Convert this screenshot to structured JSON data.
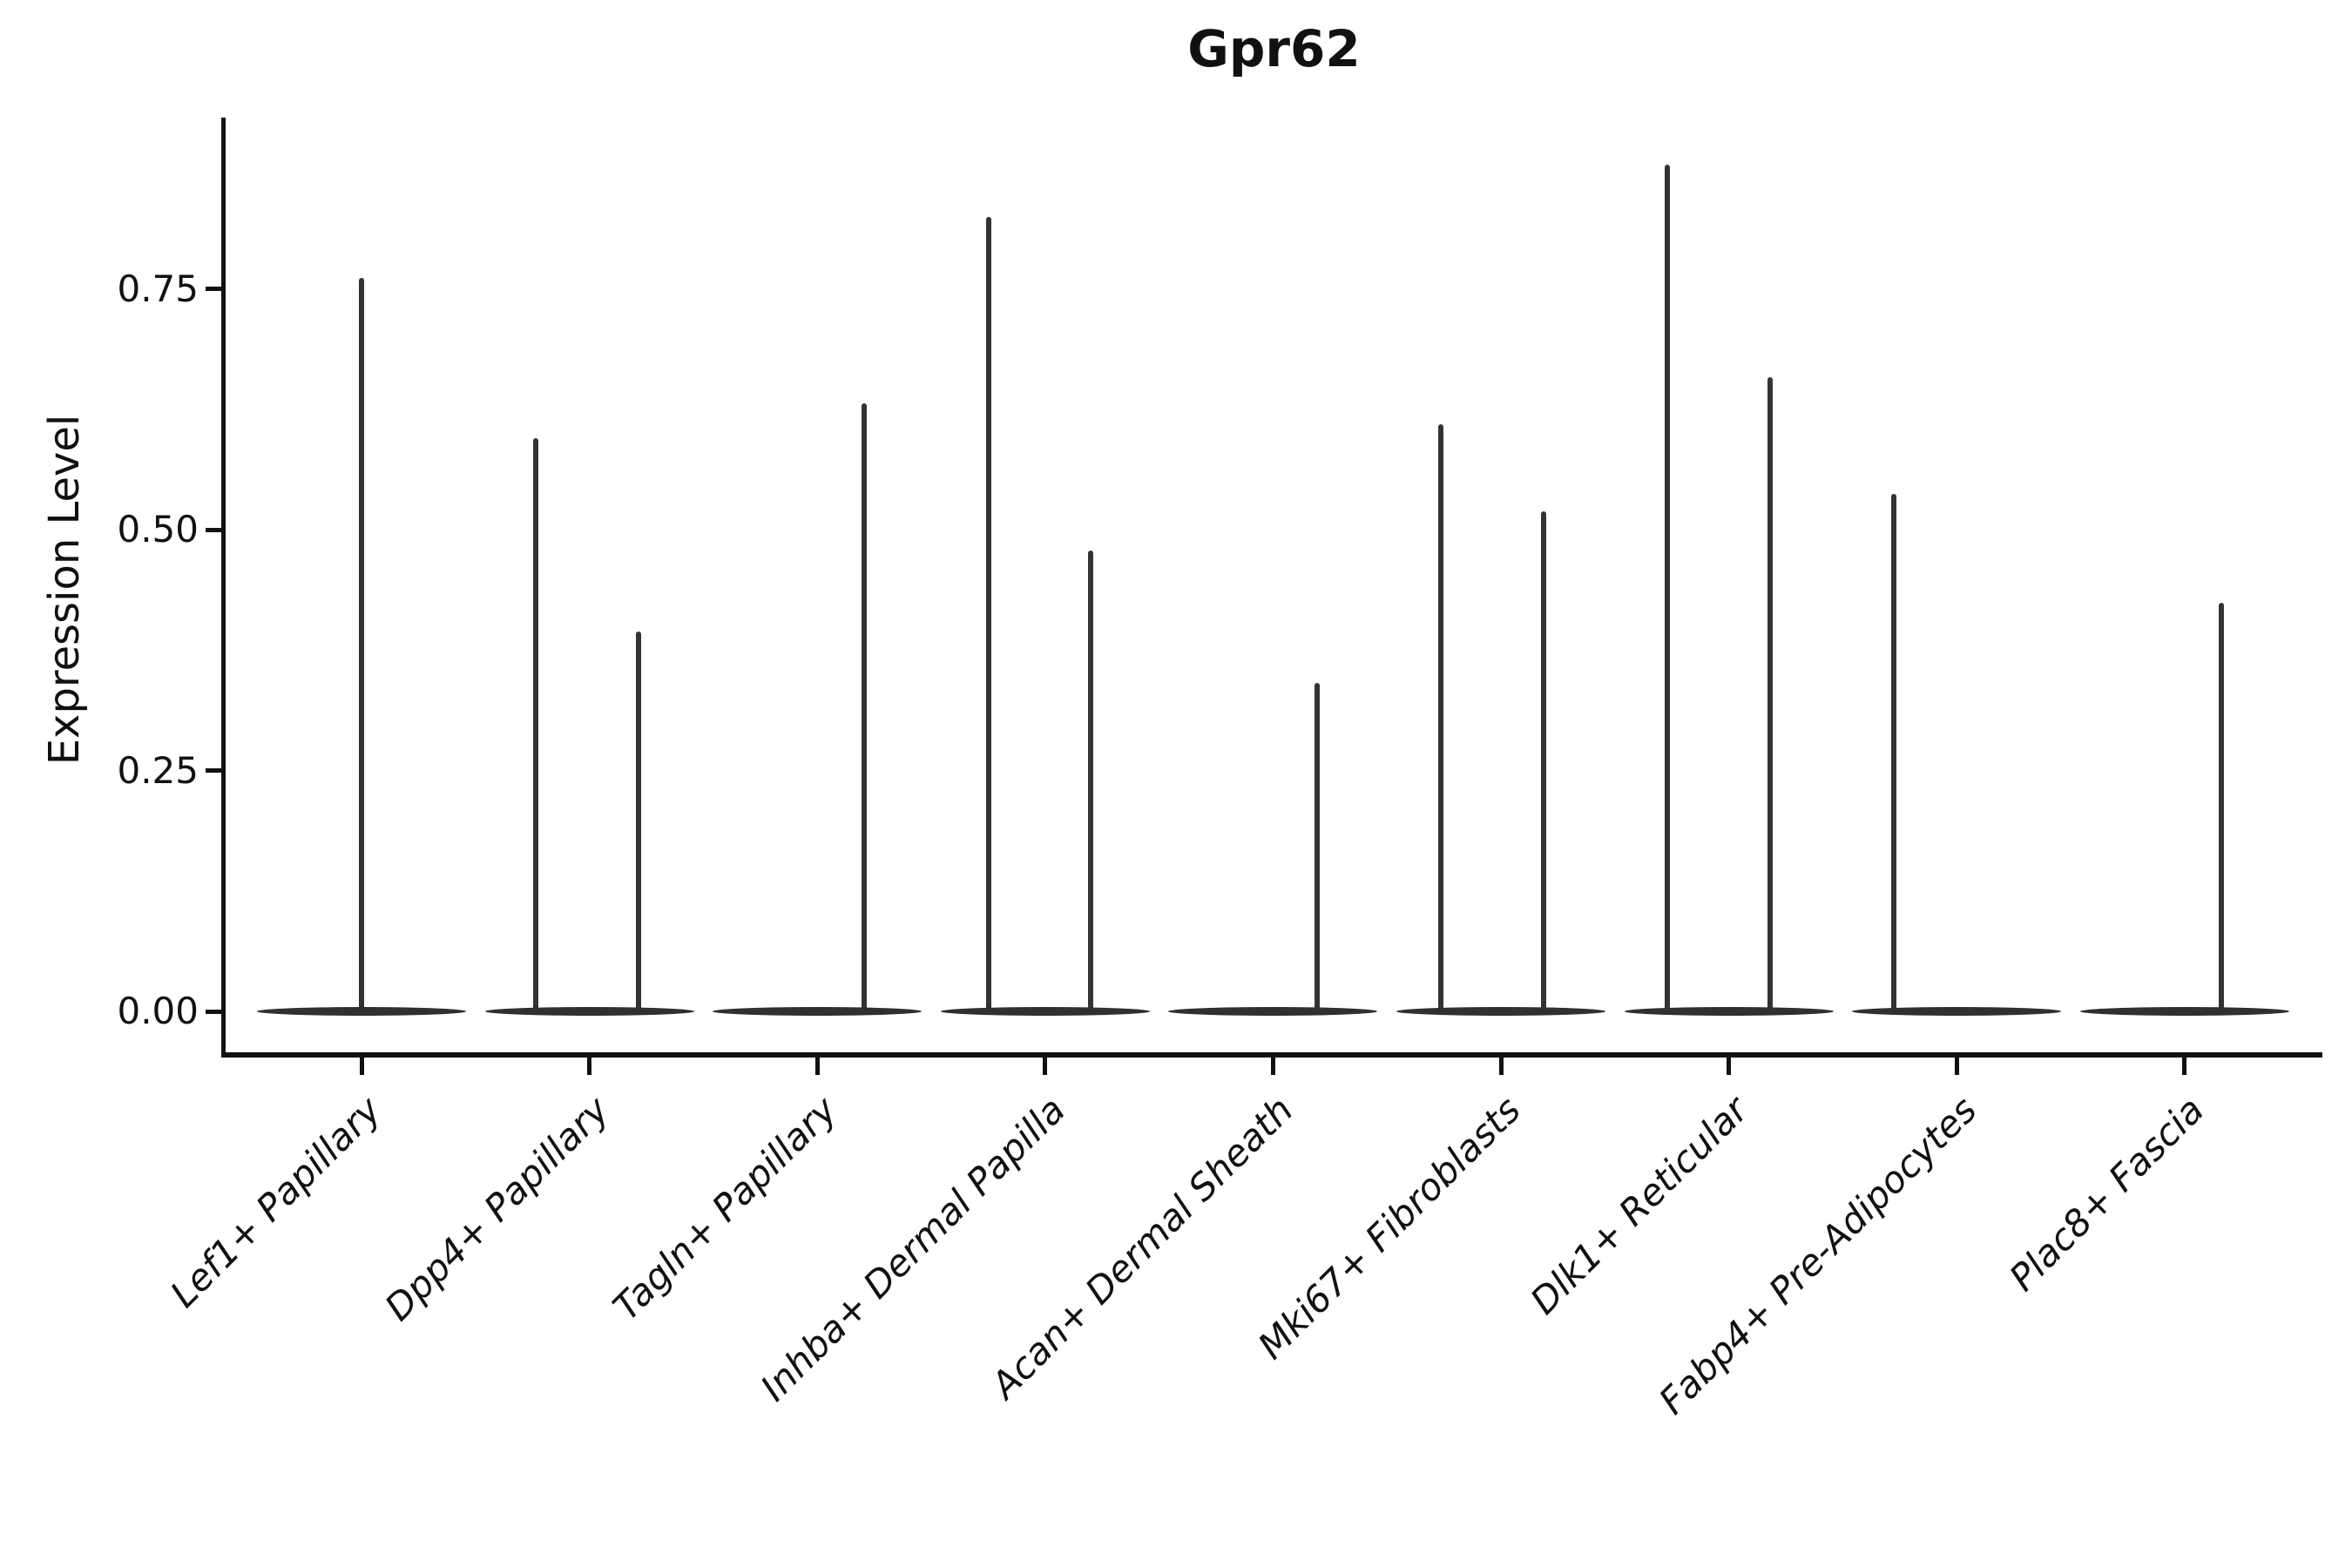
{
  "title": "Gpr62",
  "axes": {
    "ylabel": "Expression Level",
    "yticks": [
      {
        "label": "0.00",
        "value": 0.0
      },
      {
        "label": "0.25",
        "value": 0.25
      },
      {
        "label": "0.50",
        "value": 0.5
      },
      {
        "label": "0.75",
        "value": 0.75
      }
    ]
  },
  "chart_data": {
    "type": "violin",
    "title": "Gpr62",
    "xlabel": "",
    "ylabel": "Expression Level",
    "ylim": [
      -0.045,
      0.93
    ],
    "ytick_values": [
      0.0,
      0.25,
      0.5,
      0.75
    ],
    "grid": false,
    "legend": false,
    "xtick_rotation": 45,
    "categories": [
      "Lef1+ Papillary",
      "Dpp4+ Papillary",
      "Tagln+ Papillary",
      "Inhba+ Dermal Papilla",
      "Acan+ Dermal Sheath",
      "Mki67+ Fibroblasts",
      "Dlk1+ Reticular",
      "Fabp4+ Pre-Adipocytes",
      "Plac8+ Fascia"
    ],
    "violins": [
      {
        "category": "Lef1+ Papillary",
        "base_value": 0,
        "peaks": [
          {
            "offset_frac": 0.0,
            "max": 0.761
          }
        ]
      },
      {
        "category": "Dpp4+ Papillary",
        "base_value": 0,
        "peaks": [
          {
            "offset_frac": -0.235,
            "max": 0.595
          },
          {
            "offset_frac": 0.216,
            "max": 0.394
          }
        ]
      },
      {
        "category": "Tagln+ Papillary",
        "base_value": 0,
        "peaks": [
          {
            "offset_frac": 0.206,
            "max": 0.631
          }
        ]
      },
      {
        "category": "Inhba+ Dermal Papilla",
        "base_value": 0,
        "peaks": [
          {
            "offset_frac": -0.248,
            "max": 0.825
          },
          {
            "offset_frac": 0.2,
            "max": 0.478
          }
        ]
      },
      {
        "category": "Acan+ Dermal Sheath",
        "base_value": 0,
        "peaks": [
          {
            "offset_frac": 0.193,
            "max": 0.341
          }
        ]
      },
      {
        "category": "Mki67+ Fibroblasts",
        "base_value": 0,
        "peaks": [
          {
            "offset_frac": -0.264,
            "max": 0.609
          },
          {
            "offset_frac": 0.187,
            "max": 0.519
          }
        ]
      },
      {
        "category": "Dlk1+ Reticular",
        "base_value": 0,
        "peaks": [
          {
            "offset_frac": -0.27,
            "max": 0.879
          },
          {
            "offset_frac": 0.181,
            "max": 0.658
          }
        ]
      },
      {
        "category": "Fabp4+ Pre-Adipocytes",
        "base_value": 0,
        "peaks": [
          {
            "offset_frac": -0.276,
            "max": 0.537
          }
        ]
      },
      {
        "category": "Plac8+ Fascia",
        "base_value": 0,
        "peaks": [
          {
            "offset_frac": 0.161,
            "max": 0.424
          }
        ]
      }
    ],
    "colors": {
      "violin": "#333333",
      "axis": "#111111",
      "text": "#111111",
      "background": "#ffffff"
    }
  }
}
